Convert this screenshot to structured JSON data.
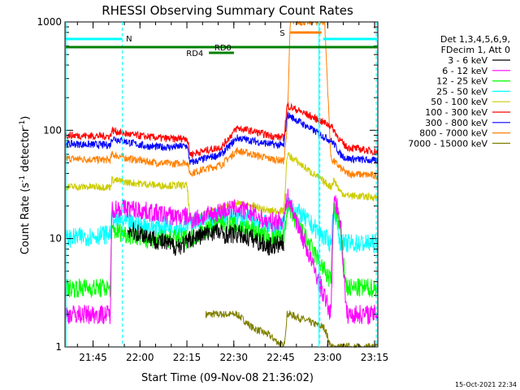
{
  "chart_data": {
    "type": "line",
    "title": "RHESSI Observing Summary Count Rates",
    "xlabel": "Start Time (09-Nov-08 21:36:02)",
    "ylabel_main": "Count Rate (s",
    "ylabel_sup1": "-1",
    "ylabel_mid": " detector",
    "ylabel_sup2": "-1",
    "ylabel_end": ")",
    "yscale": "log",
    "ylim": [
      1,
      1000
    ],
    "xlim_minutes": [
      0,
      100
    ],
    "x_ticks": [
      {
        "label": "21:45",
        "minute": 8.97
      },
      {
        "label": "22:00",
        "minute": 23.97
      },
      {
        "label": "22:15",
        "minute": 38.97
      },
      {
        "label": "22:30",
        "minute": 53.97
      },
      {
        "label": "22:45",
        "minute": 68.97
      },
      {
        "label": "23:00",
        "minute": 83.97
      },
      {
        "label": "23:15",
        "minute": 98.97
      }
    ],
    "y_ticks": [
      {
        "label": "1",
        "value": 1
      },
      {
        "label": "10",
        "value": 10
      },
      {
        "label": "100",
        "value": 100
      },
      {
        "label": "1000",
        "value": 1000
      }
    ],
    "legend": {
      "header1": "Det 1,3,4,5,6,9,",
      "header2": "FDecim 1, Att 0",
      "placement": "right"
    },
    "series": [
      {
        "name": "3 - 6 keV",
        "color": "#000000",
        "points": [
          [
            20,
            12
          ],
          [
            25,
            11
          ],
          [
            30,
            9.5
          ],
          [
            35,
            8.5
          ],
          [
            39,
            9
          ],
          [
            40,
            10
          ],
          [
            45,
            11
          ],
          [
            48,
            12
          ],
          [
            50,
            11
          ],
          [
            55,
            11
          ],
          [
            60,
            10
          ],
          [
            65,
            8.5
          ],
          [
            70,
            9
          ]
        ]
      },
      {
        "name": "6 - 12 keV",
        "color": "#ff00ff",
        "points": [
          [
            0,
            2
          ],
          [
            14.5,
            2
          ],
          [
            15,
            19
          ],
          [
            20,
            19
          ],
          [
            25,
            18
          ],
          [
            30,
            17
          ],
          [
            35,
            16
          ],
          [
            39,
            16
          ],
          [
            40,
            15
          ],
          [
            45,
            16
          ],
          [
            50,
            18
          ],
          [
            55,
            19
          ],
          [
            60,
            17
          ],
          [
            65,
            14
          ],
          [
            70,
            15
          ],
          [
            71,
            25
          ],
          [
            85,
            2
          ],
          [
            86,
            25
          ],
          [
            88,
            15
          ],
          [
            90,
            2
          ],
          [
            100,
            2
          ]
        ]
      },
      {
        "name": "12 - 25 keV",
        "color": "#00ff00",
        "points": [
          [
            0,
            3.5
          ],
          [
            14.5,
            3.5
          ],
          [
            15,
            12
          ],
          [
            20,
            11
          ],
          [
            25,
            10
          ],
          [
            30,
            10
          ],
          [
            35,
            10
          ],
          [
            39,
            10
          ],
          [
            40,
            10
          ],
          [
            45,
            12
          ],
          [
            50,
            14
          ],
          [
            55,
            13
          ],
          [
            60,
            12
          ],
          [
            65,
            10
          ],
          [
            70,
            10
          ],
          [
            71,
            20
          ],
          [
            85,
            4
          ],
          [
            86,
            20
          ],
          [
            88,
            12
          ],
          [
            90,
            3.5
          ],
          [
            100,
            3.5
          ]
        ]
      },
      {
        "name": "25 - 50 keV",
        "color": "#00ffff",
        "points": [
          [
            0,
            10
          ],
          [
            14.5,
            11
          ],
          [
            15,
            15
          ],
          [
            20,
            14
          ],
          [
            25,
            13
          ],
          [
            30,
            13
          ],
          [
            35,
            13
          ],
          [
            39,
            13
          ],
          [
            40,
            14
          ],
          [
            45,
            15
          ],
          [
            50,
            16
          ],
          [
            55,
            16
          ],
          [
            60,
            15
          ],
          [
            65,
            13
          ],
          [
            70,
            13
          ],
          [
            71,
            22
          ],
          [
            85,
            9
          ],
          [
            86,
            20
          ],
          [
            88,
            9
          ],
          [
            90,
            9
          ],
          [
            100,
            9
          ]
        ]
      },
      {
        "name": "50 - 100 keV",
        "color": "#cccc00",
        "points": [
          [
            0,
            30
          ],
          [
            14.5,
            30
          ],
          [
            15,
            35
          ],
          [
            20,
            33
          ],
          [
            25,
            32
          ],
          [
            30,
            31
          ],
          [
            35,
            31
          ],
          [
            39,
            31
          ],
          [
            40,
            15
          ],
          [
            45,
            17
          ],
          [
            50,
            19
          ],
          [
            55,
            21
          ],
          [
            60,
            20
          ],
          [
            65,
            18
          ],
          [
            70,
            18
          ],
          [
            71,
            60
          ],
          [
            85,
            30
          ],
          [
            86,
            35
          ],
          [
            88,
            27
          ],
          [
            90,
            25
          ],
          [
            100,
            24
          ]
        ]
      },
      {
        "name": "100 - 300 keV",
        "color": "#ff0000",
        "points": [
          [
            0,
            90
          ],
          [
            14.5,
            88
          ],
          [
            15,
            100
          ],
          [
            20,
            92
          ],
          [
            25,
            88
          ],
          [
            30,
            85
          ],
          [
            35,
            83
          ],
          [
            39,
            85
          ],
          [
            40,
            60
          ],
          [
            45,
            65
          ],
          [
            50,
            70
          ],
          [
            55,
            105
          ],
          [
            60,
            98
          ],
          [
            65,
            90
          ],
          [
            70,
            85
          ],
          [
            71,
            170
          ],
          [
            85,
            110
          ],
          [
            86,
            100
          ],
          [
            88,
            80
          ],
          [
            90,
            70
          ],
          [
            100,
            63
          ]
        ]
      },
      {
        "name": "300 - 800 keV",
        "color": "#0000ff",
        "points": [
          [
            0,
            75
          ],
          [
            14.5,
            73
          ],
          [
            15,
            85
          ],
          [
            20,
            78
          ],
          [
            25,
            72
          ],
          [
            30,
            70
          ],
          [
            35,
            70
          ],
          [
            39,
            72
          ],
          [
            40,
            50
          ],
          [
            45,
            55
          ],
          [
            50,
            60
          ],
          [
            55,
            85
          ],
          [
            60,
            80
          ],
          [
            65,
            75
          ],
          [
            70,
            72
          ],
          [
            71,
            140
          ],
          [
            85,
            80
          ],
          [
            86,
            75
          ],
          [
            88,
            60
          ],
          [
            90,
            55
          ],
          [
            100,
            52
          ]
        ]
      },
      {
        "name": "800 - 7000 keV",
        "color": "#ff8000",
        "points": [
          [
            0,
            55
          ],
          [
            14.5,
            53
          ],
          [
            15,
            60
          ],
          [
            20,
            55
          ],
          [
            25,
            52
          ],
          [
            30,
            50
          ],
          [
            35,
            49
          ],
          [
            39,
            51
          ],
          [
            40,
            40
          ],
          [
            45,
            44
          ],
          [
            50,
            48
          ],
          [
            55,
            65
          ],
          [
            60,
            60
          ],
          [
            65,
            55
          ],
          [
            70,
            52
          ],
          [
            71,
            100
          ],
          [
            72,
            1000
          ],
          [
            83,
            1000
          ],
          [
            85,
            55
          ],
          [
            88,
            45
          ],
          [
            90,
            40
          ],
          [
            100,
            38
          ]
        ]
      },
      {
        "name": "7000 - 15000 keV",
        "color": "#808000",
        "points": [
          [
            45,
            2
          ],
          [
            55,
            2
          ],
          [
            60,
            1.5
          ],
          [
            65,
            1.3
          ],
          [
            70,
            1
          ],
          [
            71,
            2
          ],
          [
            72,
            2
          ],
          [
            83,
            1.5
          ],
          [
            85,
            1
          ],
          [
            100,
            1
          ]
        ]
      }
    ],
    "annotations": [
      {
        "text": "N",
        "color": "#00ffff"
      },
      {
        "text": "RD0",
        "color": "#008000"
      },
      {
        "text": "RD4",
        "color": "#008000"
      },
      {
        "text": "S",
        "color": "#ff8000"
      }
    ],
    "timestamp": "15-Oct-2021 22:34"
  }
}
